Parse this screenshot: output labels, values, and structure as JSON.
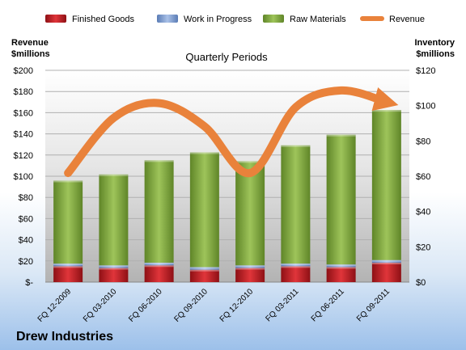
{
  "chart_data": {
    "type": "bar",
    "stacked": true,
    "title": "Quarterly Periods",
    "company": "Drew Industries",
    "categories": [
      "FQ 12-2009",
      "FQ 03-2010",
      "FQ 06-2010",
      "FQ 09-2010",
      "FQ 12-2010",
      "FQ 03-2011",
      "FQ 06-2011",
      "FQ 09-2011"
    ],
    "left_axis": {
      "label_line1": "Revenue",
      "label_line2": "$millions",
      "range": [
        0,
        200
      ],
      "ticks": [
        0,
        20,
        40,
        60,
        80,
        100,
        120,
        140,
        160,
        180,
        200
      ],
      "tick_labels": [
        "$-",
        "$20",
        "$40",
        "$60",
        "$80",
        "$100",
        "$120",
        "$140",
        "$160",
        "$180",
        "$200"
      ]
    },
    "right_axis": {
      "label_line1": "Inventory",
      "label_line2": "$millions",
      "range": [
        0,
        120
      ],
      "ticks": [
        0,
        20,
        40,
        60,
        80,
        100,
        120
      ],
      "tick_labels": [
        "$0",
        "$20",
        "$40",
        "$60",
        "$80",
        "$100",
        "$120"
      ]
    },
    "series": [
      {
        "name": "Finished Goods",
        "axis": "right",
        "color": "#cc2229",
        "values": [
          9,
          8,
          9.5,
          7,
          8,
          9,
          8.5,
          11
        ]
      },
      {
        "name": "Work in Progress",
        "axis": "right",
        "color": "#7d9ed3",
        "values": [
          1.5,
          1.5,
          1.5,
          1.5,
          1.5,
          1.5,
          1.5,
          1.5
        ]
      },
      {
        "name": "Raw Materials",
        "axis": "right",
        "color": "#8db34a",
        "values": [
          47,
          51.5,
          58,
          65,
          59,
          67,
          73.5,
          85
        ]
      },
      {
        "name": "Revenue",
        "axis": "left",
        "type": "line",
        "color": "#e9823b",
        "values": [
          103,
          155,
          169,
          147,
          103,
          165,
          181,
          170
        ]
      }
    ],
    "legend_position": "top",
    "grid": true
  }
}
